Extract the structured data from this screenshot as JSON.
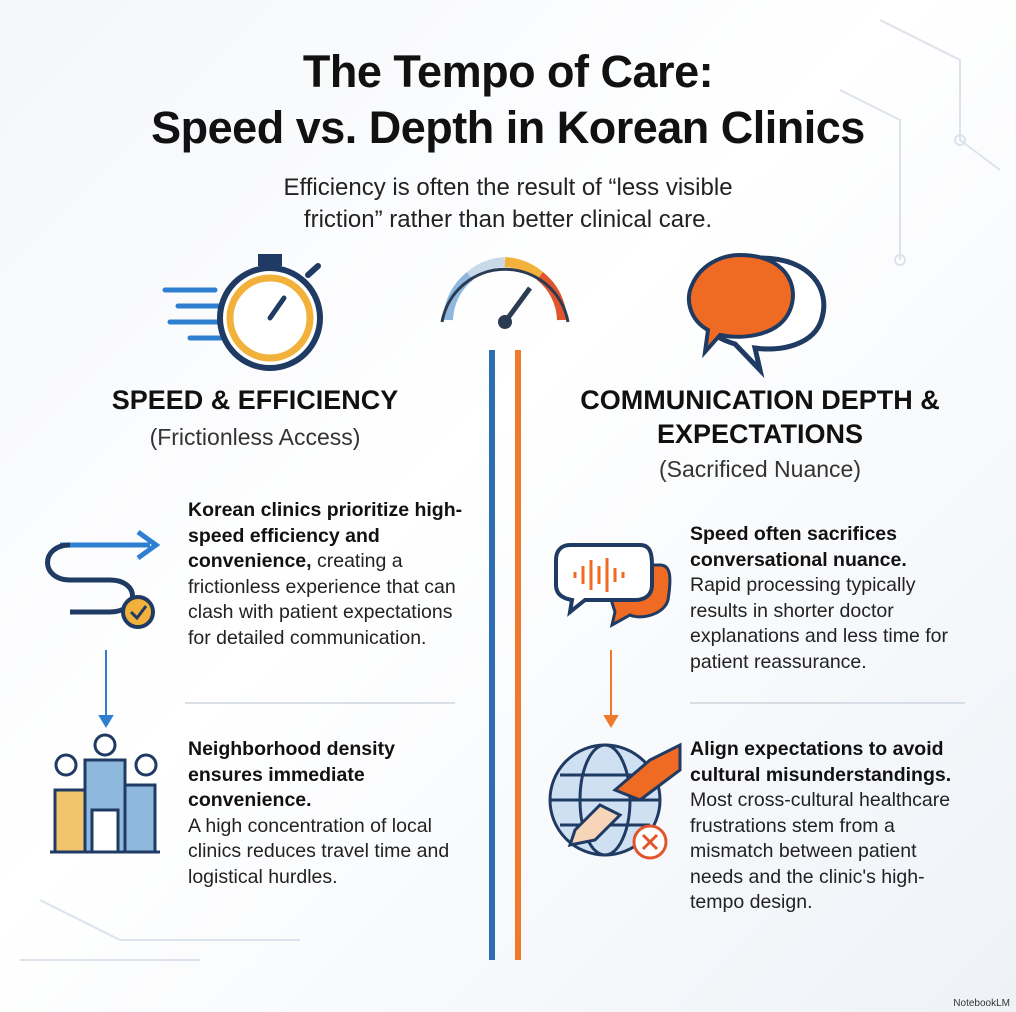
{
  "header": {
    "title": [
      "The Tempo of Care:",
      "Speed vs. Depth in Korean Clinics"
    ],
    "subtitle": "Efficiency is often the result of “less visible friction” rather than better clinical care."
  },
  "left": {
    "heading": "SPEED & EFFICIENCY",
    "subheading": "(Frictionless Access)",
    "items": [
      {
        "bold": "Korean clinics prioritize high-speed efficiency and convenience,",
        "body": "creating a frictionless experience that can clash with patient expectations for detailed communication."
      },
      {
        "bold": "Neighborhood density ensures immediate convenience.",
        "body": "A high concentration of local clinics reduces travel time and logistical hurdles."
      }
    ]
  },
  "right": {
    "heading": "COMMUNICATION DEPTH & EXPECTATIONS",
    "subheading": "(Sacrificed Nuance)",
    "items": [
      {
        "bold": "Speed often sacrifices conversational nuance.",
        "body": "Rapid processing typically results in shorter doctor explanations and less time for patient reassurance."
      },
      {
        "bold": "Align expectations to avoid cultural misunderstandings.",
        "body": "Most cross-cultural healthcare frustrations stem from a mismatch between patient needs and the clinic's high-tempo design."
      }
    ]
  },
  "watermark": "NotebookLM"
}
